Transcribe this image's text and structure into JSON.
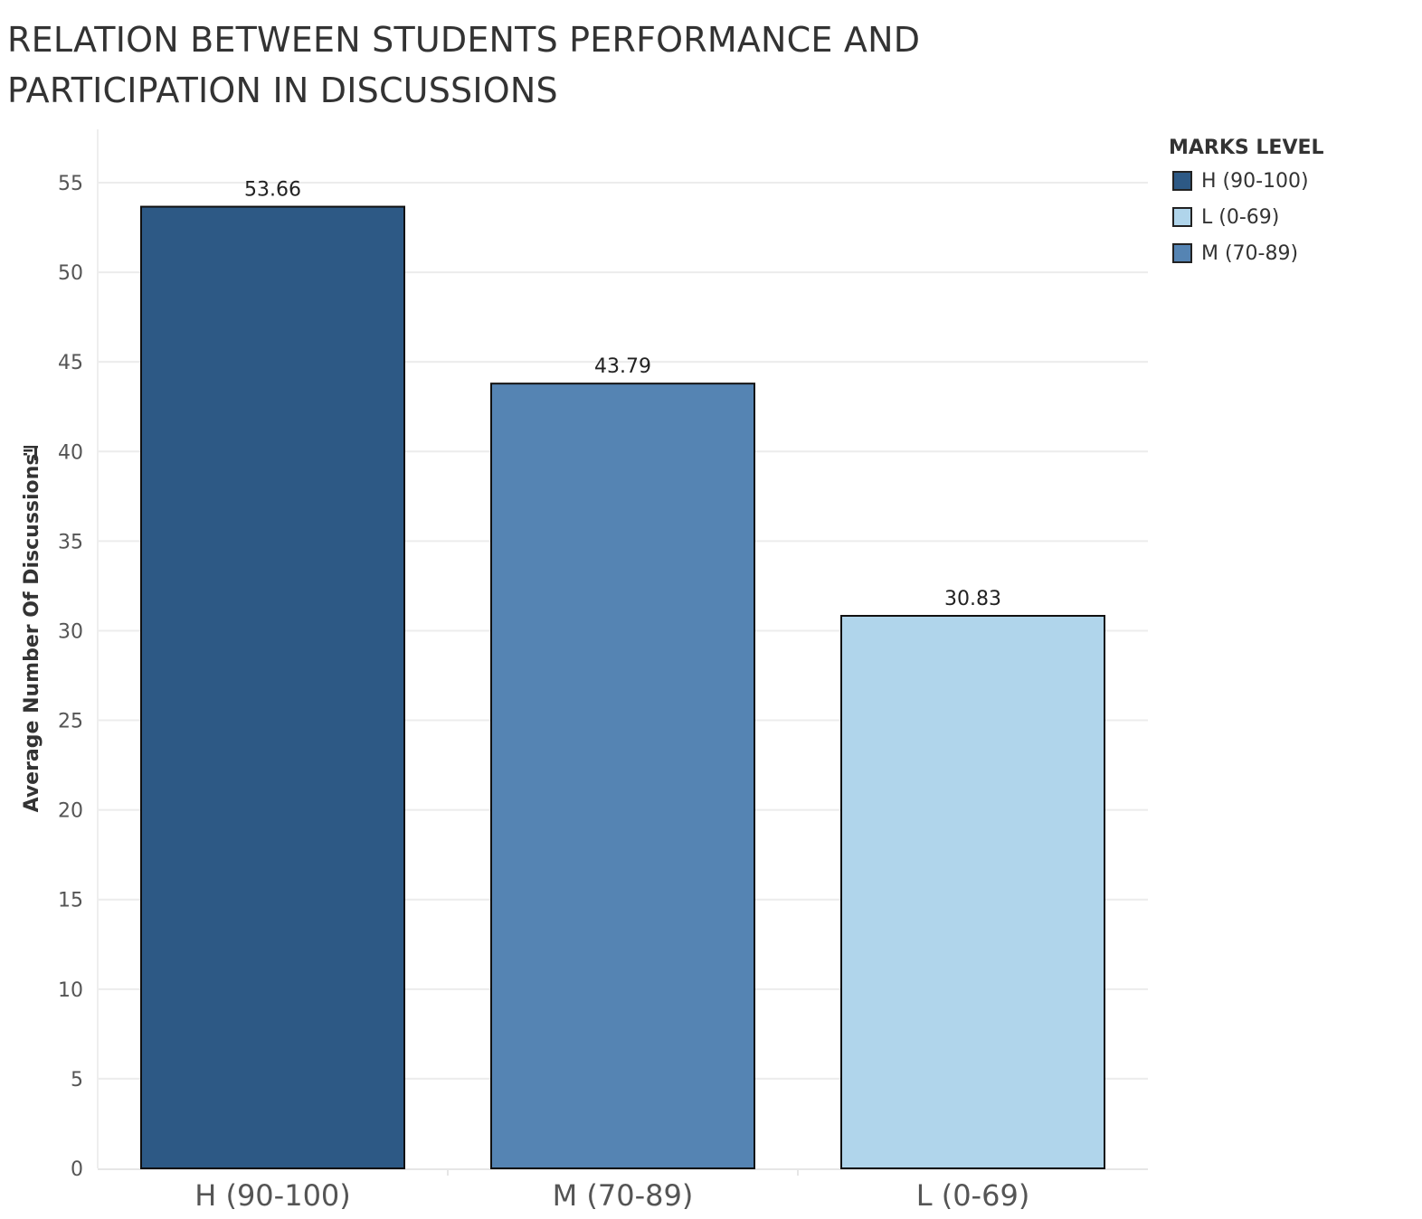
{
  "page": {
    "title": "RELATION BETWEEN STUDENTS PERFORMANCE AND PARTICIPATION IN DISCUSSIONS"
  },
  "legend": {
    "title": "MARKS LEVEL",
    "items": [
      {
        "label": "H (90-100)",
        "color": "#2d5985"
      },
      {
        "label": "L (0-69)",
        "color": "#b0d5eb"
      },
      {
        "label": "M (70-89)",
        "color": "#5584b3"
      }
    ]
  },
  "chart_data": {
    "type": "bar",
    "title": "RELATION BETWEEN STUDENTS PERFORMANCE AND PARTICIPATION IN DISCUSSIONS",
    "xlabel": "",
    "ylabel": "Average Number Of Discussions",
    "categories": [
      "H (90-100)",
      "M (70-89)",
      "L (0-69)"
    ],
    "values": [
      53.66,
      43.79,
      30.83
    ],
    "value_labels": [
      "53.66",
      "43.79",
      "30.83"
    ],
    "colors": [
      "#2d5985",
      "#5584b3",
      "#b0d5eb"
    ],
    "ylim": [
      0,
      55
    ],
    "yticks": [
      0,
      5,
      10,
      15,
      20,
      25,
      30,
      35,
      40,
      45,
      50,
      55
    ],
    "grid": true,
    "legend_position": "top-right"
  }
}
